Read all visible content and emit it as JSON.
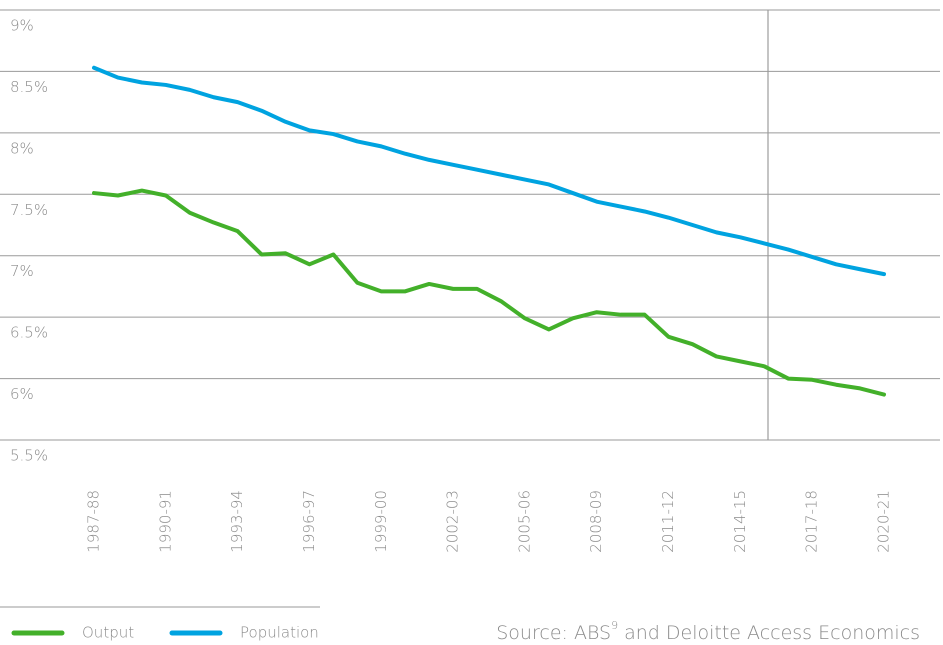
{
  "chart_data": {
    "type": "line",
    "categories": [
      "1987-88",
      null,
      null,
      "1990-91",
      null,
      null,
      "1993-94",
      null,
      null,
      "1996-97",
      null,
      null,
      "1999-00",
      null,
      null,
      "2002-03",
      null,
      null,
      "2005-06",
      null,
      null,
      "2008-09",
      null,
      null,
      "2011-12",
      null,
      null,
      "2014-15",
      null,
      null,
      "2017-18",
      null,
      null,
      "2020-21"
    ],
    "series": [
      {
        "name": "Output",
        "color": "#43b02a",
        "values": [
          7.51,
          7.49,
          7.53,
          7.49,
          7.35,
          7.27,
          7.2,
          7.01,
          7.02,
          6.93,
          7.01,
          6.78,
          6.71,
          6.71,
          6.77,
          6.73,
          6.73,
          6.63,
          6.49,
          6.4,
          6.49,
          6.54,
          6.52,
          6.52,
          6.34,
          6.28,
          6.18,
          6.14,
          6.1,
          6.0,
          5.99,
          5.95,
          5.92,
          5.87
        ]
      },
      {
        "name": "Population",
        "color": "#00a3e0",
        "values": [
          8.53,
          8.45,
          8.41,
          8.39,
          8.35,
          8.29,
          8.25,
          8.18,
          8.09,
          8.02,
          7.99,
          7.93,
          7.89,
          7.83,
          7.78,
          7.74,
          7.7,
          7.66,
          7.62,
          7.58,
          7.51,
          7.44,
          7.4,
          7.36,
          7.31,
          7.25,
          7.19,
          7.15,
          7.1,
          7.05,
          6.99,
          6.93,
          6.89,
          6.85
        ]
      }
    ],
    "ylim": [
      5.5,
      9
    ],
    "yticks": [
      {
        "value": 5.5,
        "label": "5.5%"
      },
      {
        "value": 6,
        "label": "6%"
      },
      {
        "value": 6.5,
        "label": "6.5%"
      },
      {
        "value": 7,
        "label": "7%"
      },
      {
        "value": 7.5,
        "label": "7.5%"
      },
      {
        "value": 8,
        "label": "8%"
      },
      {
        "value": 8.5,
        "label": "8.5%"
      },
      {
        "value": 9,
        "label": "9%"
      }
    ],
    "grid": true,
    "legend": "bottom-left",
    "source": [
      "Source: ABS",
      "9",
      "and Deloitte Access Economics"
    ]
  }
}
